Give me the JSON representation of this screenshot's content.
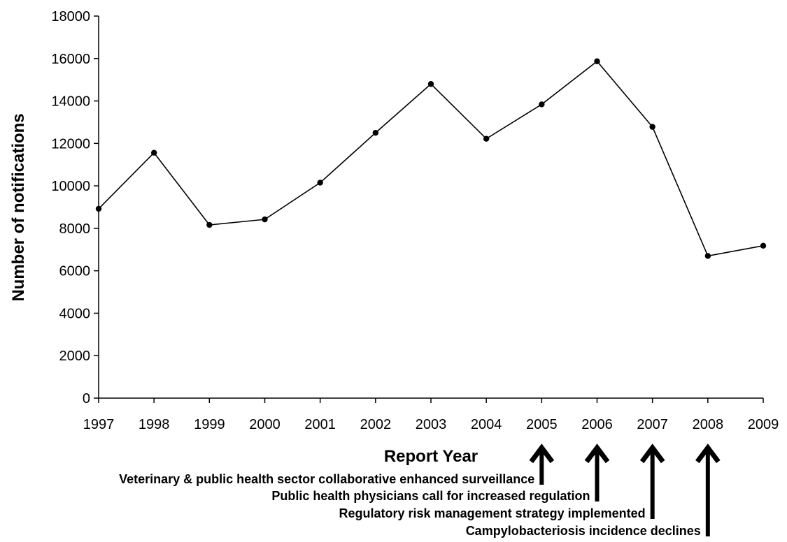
{
  "chart_data": {
    "type": "line",
    "xlabel": "Report Year",
    "ylabel": "Number of notifications",
    "ylim": [
      0,
      18000
    ],
    "yticks": [
      0,
      2000,
      4000,
      6000,
      8000,
      10000,
      12000,
      14000,
      16000,
      18000
    ],
    "ytick_labels": [
      "0",
      "2000",
      "4000",
      "6000",
      "8000",
      "10000",
      "12000",
      "14000",
      "16000",
      "18000"
    ],
    "categories": [
      "1997",
      "1998",
      "1999",
      "2000",
      "2001",
      "2002",
      "2003",
      "2004",
      "2005",
      "2006",
      "2007",
      "2008",
      "2009"
    ],
    "series": [
      {
        "values": [
          8920,
          11560,
          8160,
          8420,
          10150,
          12500,
          14800,
          12220,
          13840,
          15870,
          12780,
          6700,
          7180
        ]
      }
    ],
    "grid": false,
    "legend": "none",
    "annotations": [
      {
        "text": "Veterinary & public health sector collaborative enhanced surveillance",
        "year": "2005"
      },
      {
        "text": "Public health physicians call for increased regulation",
        "year": "2006"
      },
      {
        "text": "Regulatory risk management strategy implemented",
        "year": "2007"
      },
      {
        "text": "Campylobacteriosis incidence declines",
        "year": "2008"
      }
    ]
  }
}
